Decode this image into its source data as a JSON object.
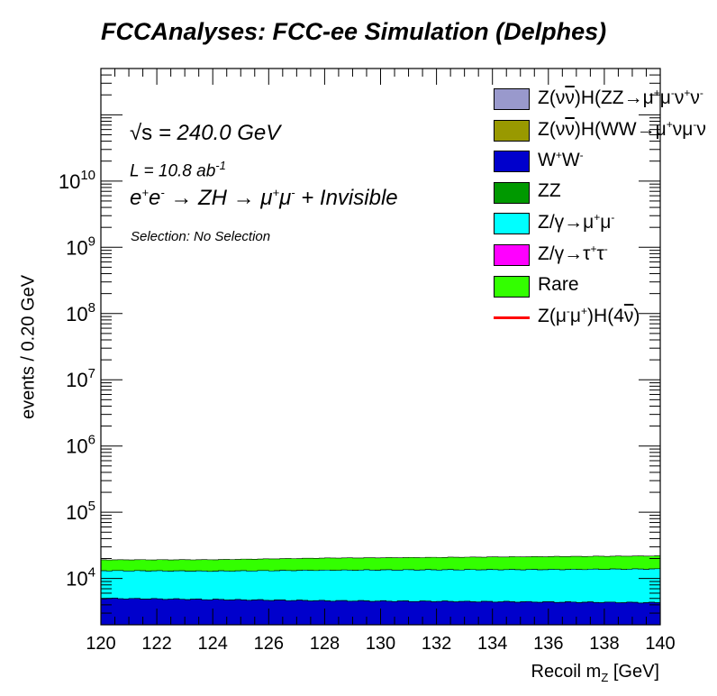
{
  "title": "FCCAnalyses: FCC-ee Simulation (Delphes)",
  "annotations": {
    "sqrt_s_symbol": "√s",
    "sqrt_s_value": " = 240.0 GeV",
    "lumi": "L = 10.8 ab",
    "lumi_exp": "-1",
    "process_a": "e",
    "process_b": "e",
    "process_c": " → ZH → μ",
    "process_d": "μ",
    "process_e": " + Invisible",
    "selection": "Selection: No Selection"
  },
  "axes": {
    "xlabel": "Recoil m",
    "xlabel_sub": "Z",
    "xlabel_unit": " [GeV]",
    "ylabel": "events / 0.20 GeV"
  },
  "chart_data": {
    "type": "area",
    "title": "FCCAnalyses: FCC-ee Simulation (Delphes)",
    "xlabel": "Recoil m_Z [GeV]",
    "ylabel": "events / 0.20 GeV",
    "xlim": [
      120,
      140
    ],
    "ylim": [
      2000,
      500000000000
    ],
    "yscale": "log",
    "x_ticks": [
      120,
      122,
      124,
      126,
      128,
      130,
      132,
      134,
      136,
      138,
      140
    ],
    "y_ticks": [
      "10^4",
      "10^5",
      "10^6",
      "10^7",
      "10^8",
      "10^9",
      "10^10"
    ],
    "stacked": true,
    "x": [
      120,
      124,
      128,
      132,
      136,
      140
    ],
    "series": [
      {
        "name": "Z(νν̄)H(ZZ→μ+μ-ν+ν-)",
        "color": "#9999cc",
        "values": [
          0,
          0,
          0,
          0,
          0,
          0
        ]
      },
      {
        "name": "Z(νν̄)H(WW→μ+νμ-ν)",
        "color": "#999900",
        "values": [
          0,
          0,
          0,
          0,
          0,
          0
        ]
      },
      {
        "name": "W+W-",
        "color": "#0000cc",
        "values": [
          5000,
          4800,
          4600,
          4500,
          4400,
          4300
        ]
      },
      {
        "name": "ZZ",
        "color": "#009900",
        "values": [
          20,
          20,
          20,
          20,
          20,
          20
        ]
      },
      {
        "name": "Z/γ→μ+μ-",
        "color": "#00ffff",
        "values": [
          8100,
          8100,
          8700,
          9000,
          9200,
          9600
        ]
      },
      {
        "name": "Z/γ→τ+τ-",
        "color": "#ff00ff",
        "values": [
          0,
          0,
          0,
          0,
          0,
          0
        ]
      },
      {
        "name": "Rare",
        "color": "#33ff00",
        "values": [
          6000,
          6300,
          7000,
          7300,
          7800,
          8000
        ]
      },
      {
        "name": "Z(μ-μ+)H(4ν)",
        "color": "#ff0000",
        "values": [
          0,
          0,
          0,
          0,
          0,
          0
        ],
        "style": "line"
      }
    ],
    "legend_position": "top-right",
    "grid": false
  },
  "legend": [
    {
      "type": "fill",
      "color": "#9999cc",
      "t1": "Z(ν",
      "t2": "ν",
      "t3": ")H(ZZ→μ",
      "s1": "+",
      "t4": "μ",
      "s2": "-",
      "t5": "ν",
      "s3": "+",
      "t6": "ν",
      "s4": "-"
    },
    {
      "type": "fill",
      "color": "#999900",
      "t1": "Z(ν",
      "t2": "ν",
      "t3": ")H(WW→μ",
      "s1": "+",
      "t4": "νμ",
      "s2": "-",
      "t5": "ν",
      "s3": "",
      "t6": "",
      "s4": ""
    },
    {
      "type": "fill",
      "color": "#0000cc",
      "t1": "W",
      "s1": "+",
      "t2": "W",
      "s2": "-"
    },
    {
      "type": "fill",
      "color": "#009900",
      "t1": "ZZ"
    },
    {
      "type": "fill",
      "color": "#00ffff",
      "t1": "Z/γ→μ",
      "s1": "+",
      "t2": "μ",
      "s2": "-"
    },
    {
      "type": "fill",
      "color": "#ff00ff",
      "t1": "Z/γ→τ",
      "s1": "+",
      "t2": "τ",
      "s2": "-"
    },
    {
      "type": "fill",
      "color": "#33ff00",
      "t1": "Rare"
    },
    {
      "type": "line",
      "color": "#ff0000",
      "t1": "Z(μ",
      "s1": "-",
      "t2": "μ",
      "s2": "+",
      "t3": ")H(4",
      "t4": "ν",
      "t5": ")"
    }
  ]
}
